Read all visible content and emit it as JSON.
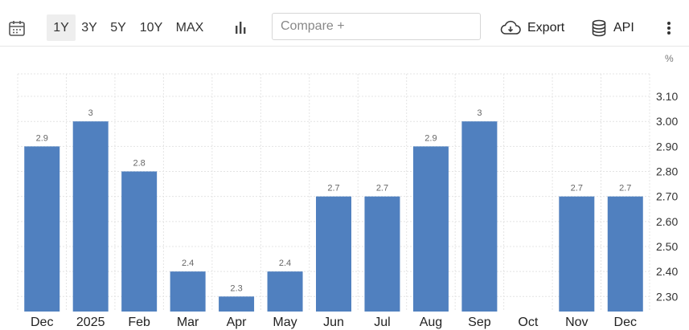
{
  "toolbar": {
    "calendar_icon": "calendar-icon",
    "ranges": [
      "1Y",
      "3Y",
      "5Y",
      "10Y",
      "MAX"
    ],
    "active_range": "1Y",
    "chart_type_icon": "bar-chart-icon",
    "compare_placeholder": "Compare +",
    "export_label": "Export",
    "export_icon": "cloud-download-icon",
    "api_label": "API",
    "api_icon": "database-icon",
    "more_icon": "vertical-dots-icon"
  },
  "colors": {
    "bar": "#5080bf",
    "grid": "#e4e4e4",
    "active_range_bg": "#eeeeee"
  },
  "chart_data": {
    "type": "bar",
    "unit": "%",
    "categories": [
      "Dec",
      "2025",
      "Feb",
      "Mar",
      "Apr",
      "May",
      "Jun",
      "Jul",
      "Aug",
      "Sep",
      "Oct",
      "Nov",
      "Dec"
    ],
    "values": [
      2.9,
      3.0,
      2.8,
      2.4,
      2.3,
      2.4,
      2.7,
      2.7,
      2.9,
      3.0,
      null,
      2.7,
      2.7
    ],
    "value_labels": [
      "2.9",
      "3",
      "2.8",
      "2.4",
      "2.3",
      "2.4",
      "2.7",
      "2.7",
      "2.9",
      "3",
      "",
      "2.7",
      "2.7"
    ],
    "y_ticks": [
      "3.10",
      "3.00",
      "2.90",
      "2.80",
      "2.70",
      "2.60",
      "2.50",
      "2.40",
      "2.30"
    ],
    "ylim": [
      2.24,
      3.19
    ],
    "y_axis_side": "right",
    "grid": true
  }
}
